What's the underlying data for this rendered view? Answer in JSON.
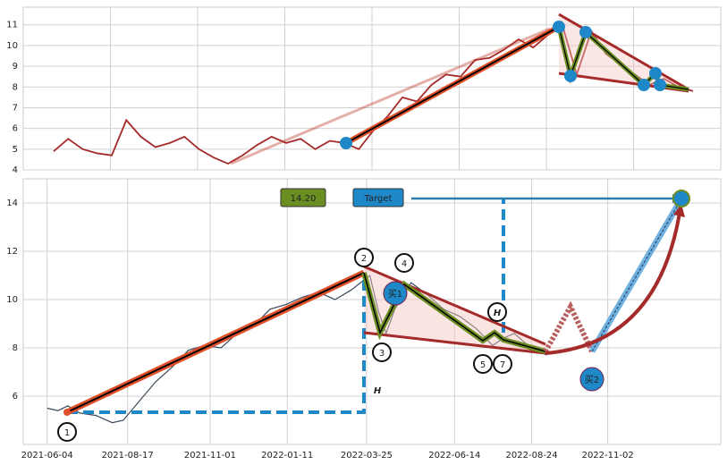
{
  "chart_data": [
    {
      "type": "line",
      "color": "#a52a2a",
      "values": [
        4.9,
        5.5,
        5.0,
        4.8,
        4.7,
        6.4,
        5.6,
        5.1,
        5.3,
        5.6,
        5.0,
        4.6,
        4.3,
        4.7,
        5.2,
        5.6,
        5.3,
        5.5,
        5.0,
        5.4,
        5.3,
        5.0,
        5.9,
        6.6,
        7.5,
        7.3,
        8.1,
        8.6,
        8.5,
        9.3,
        9.4,
        9.8,
        10.3,
        9.9,
        10.5,
        11.0,
        8.6,
        10.7,
        9.6,
        9.1,
        8.6,
        8.1,
        8.4,
        8.0,
        7.8
      ],
      "ylim": [
        4,
        11.85
      ],
      "yticks": [
        4,
        5,
        6,
        7,
        8,
        9,
        10,
        11
      ],
      "grid": true
    },
    {
      "type": "line",
      "color": "#3a4a5c",
      "x": [
        0,
        10,
        19,
        30,
        45,
        60,
        70,
        85,
        100,
        115,
        130,
        145,
        160,
        175,
        190,
        205,
        220,
        235,
        250,
        265,
        280,
        297,
        305,
        312,
        320,
        335,
        350,
        365,
        380,
        395,
        410,
        420,
        430,
        440,
        450,
        460
      ],
      "values": [
        5.5,
        5.4,
        5.6,
        5.3,
        5.2,
        4.9,
        5.0,
        5.8,
        6.6,
        7.2,
        7.9,
        8.1,
        8.0,
        8.6,
        8.9,
        9.6,
        9.8,
        10.1,
        10.3,
        10.0,
        10.4,
        11.0,
        9.5,
        8.6,
        9.6,
        10.7,
        10.2,
        9.6,
        9.3,
        8.8,
        8.1,
        8.4,
        8.6,
        8.2,
        7.9,
        7.7
      ],
      "xlim": [
        -22,
        620
      ],
      "xticks": [
        {
          "value": 0,
          "label": "2021-06-04"
        },
        {
          "value": 74,
          "label": "2021-08-17"
        },
        {
          "value": 150,
          "label": "2021-11-01"
        },
        {
          "value": 221,
          "label": "2022-01-11"
        },
        {
          "value": 294,
          "label": "2022-03-25"
        },
        {
          "value": 375,
          "label": "2022-06-14"
        },
        {
          "value": 446,
          "label": "2022-08-24"
        },
        {
          "value": 516,
          "label": "2022-11-02"
        }
      ],
      "ylim": [
        4,
        15
      ],
      "yticks": [
        6,
        8,
        10,
        12,
        14
      ],
      "grid": true,
      "annotations": [
        "14.20",
        "Target",
        "H",
        "H",
        "1",
        "2",
        "3",
        "4",
        "5",
        "7",
        "买1",
        "买2"
      ]
    }
  ]
}
